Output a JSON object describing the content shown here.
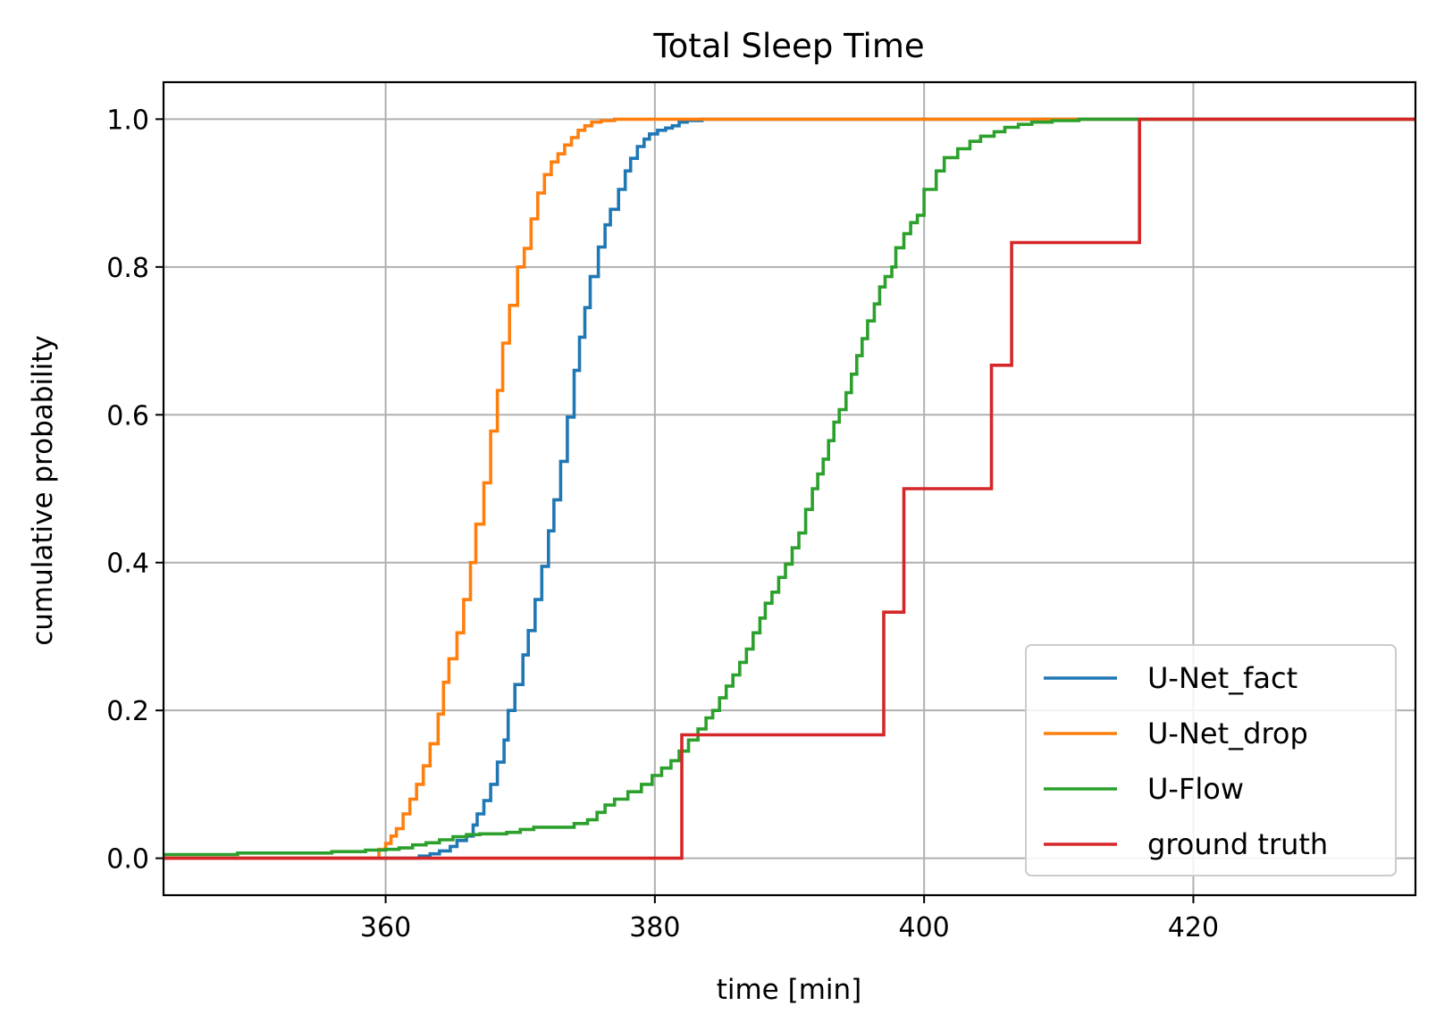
{
  "chart_data": {
    "type": "line",
    "step": true,
    "title": "Total Sleep Time",
    "xlabel": "time [min]",
    "ylabel": "cumulative probability",
    "xlim": [
      343.5,
      436.5
    ],
    "ylim": [
      -0.05,
      1.05
    ],
    "xticks": [
      360,
      380,
      400,
      420
    ],
    "yticks": [
      0.0,
      0.2,
      0.4,
      0.6,
      0.8,
      1.0
    ],
    "xtick_labels": [
      "360",
      "380",
      "400",
      "420"
    ],
    "ytick_labels": [
      "0.0",
      "0.2",
      "0.4",
      "0.6",
      "0.8",
      "1.0"
    ],
    "grid": true,
    "legend_position": "lower-right",
    "series": [
      {
        "name": "U-Net_fact",
        "color": "#1f77b4",
        "points": [
          [
            343.5,
            0.0
          ],
          [
            361.5,
            0.0
          ],
          [
            362.5,
            0.003
          ],
          [
            363.3,
            0.006
          ],
          [
            364.0,
            0.01
          ],
          [
            364.8,
            0.016
          ],
          [
            365.3,
            0.024
          ],
          [
            366.0,
            0.03
          ],
          [
            366.5,
            0.045
          ],
          [
            366.8,
            0.06
          ],
          [
            367.3,
            0.078
          ],
          [
            367.8,
            0.1
          ],
          [
            368.3,
            0.13
          ],
          [
            368.8,
            0.16
          ],
          [
            369.1,
            0.2
          ],
          [
            369.6,
            0.235
          ],
          [
            370.2,
            0.275
          ],
          [
            370.6,
            0.308
          ],
          [
            371.1,
            0.35
          ],
          [
            371.6,
            0.395
          ],
          [
            372.1,
            0.443
          ],
          [
            372.5,
            0.485
          ],
          [
            373.0,
            0.537
          ],
          [
            373.5,
            0.597
          ],
          [
            374.0,
            0.66
          ],
          [
            374.4,
            0.705
          ],
          [
            374.8,
            0.745
          ],
          [
            375.2,
            0.787
          ],
          [
            375.8,
            0.827
          ],
          [
            376.3,
            0.857
          ],
          [
            376.7,
            0.878
          ],
          [
            377.3,
            0.905
          ],
          [
            377.8,
            0.93
          ],
          [
            378.2,
            0.947
          ],
          [
            378.7,
            0.963
          ],
          [
            379.2,
            0.973
          ],
          [
            379.6,
            0.98
          ],
          [
            380.2,
            0.985
          ],
          [
            380.8,
            0.988
          ],
          [
            381.3,
            0.991
          ],
          [
            381.8,
            0.996
          ],
          [
            382.4,
            0.998
          ],
          [
            383.5,
            1.0
          ],
          [
            436.5,
            1.0
          ]
        ]
      },
      {
        "name": "U-Net_drop",
        "color": "#ff7f0e",
        "points": [
          [
            343.5,
            0.0
          ],
          [
            359.3,
            0.0
          ],
          [
            359.5,
            0.012
          ],
          [
            360.0,
            0.02
          ],
          [
            360.4,
            0.03
          ],
          [
            360.8,
            0.04
          ],
          [
            361.3,
            0.06
          ],
          [
            361.8,
            0.08
          ],
          [
            362.3,
            0.1
          ],
          [
            362.8,
            0.125
          ],
          [
            363.3,
            0.155
          ],
          [
            363.9,
            0.195
          ],
          [
            364.3,
            0.238
          ],
          [
            364.7,
            0.27
          ],
          [
            365.3,
            0.305
          ],
          [
            365.8,
            0.35
          ],
          [
            366.3,
            0.4
          ],
          [
            366.7,
            0.452
          ],
          [
            367.3,
            0.508
          ],
          [
            367.8,
            0.578
          ],
          [
            368.3,
            0.633
          ],
          [
            368.7,
            0.697
          ],
          [
            369.2,
            0.748
          ],
          [
            369.8,
            0.8
          ],
          [
            370.3,
            0.825
          ],
          [
            370.8,
            0.865
          ],
          [
            371.3,
            0.9
          ],
          [
            371.8,
            0.925
          ],
          [
            372.3,
            0.942
          ],
          [
            372.8,
            0.953
          ],
          [
            373.3,
            0.965
          ],
          [
            373.8,
            0.975
          ],
          [
            374.3,
            0.985
          ],
          [
            374.8,
            0.991
          ],
          [
            375.3,
            0.996
          ],
          [
            376.0,
            0.998
          ],
          [
            377.0,
            1.0
          ],
          [
            436.5,
            1.0
          ]
        ]
      },
      {
        "name": "U-Flow",
        "color": "#2ca02c",
        "points": [
          [
            343.5,
            0.005
          ],
          [
            349.0,
            0.007
          ],
          [
            356.0,
            0.009
          ],
          [
            358.5,
            0.011
          ],
          [
            360.0,
            0.012
          ],
          [
            361.0,
            0.014
          ],
          [
            362.0,
            0.018
          ],
          [
            363.0,
            0.021
          ],
          [
            364.0,
            0.025
          ],
          [
            365.0,
            0.029
          ],
          [
            366.0,
            0.032
          ],
          [
            367.0,
            0.033
          ],
          [
            369.0,
            0.035
          ],
          [
            370.0,
            0.039
          ],
          [
            371.0,
            0.042
          ],
          [
            374.0,
            0.047
          ],
          [
            375.0,
            0.052
          ],
          [
            375.7,
            0.062
          ],
          [
            376.3,
            0.072
          ],
          [
            377.0,
            0.08
          ],
          [
            378.0,
            0.09
          ],
          [
            379.0,
            0.1
          ],
          [
            379.8,
            0.112
          ],
          [
            380.5,
            0.122
          ],
          [
            381.2,
            0.132
          ],
          [
            381.8,
            0.145
          ],
          [
            382.5,
            0.16
          ],
          [
            383.2,
            0.175
          ],
          [
            383.8,
            0.19
          ],
          [
            384.3,
            0.2
          ],
          [
            384.8,
            0.217
          ],
          [
            385.3,
            0.233
          ],
          [
            385.8,
            0.248
          ],
          [
            386.3,
            0.265
          ],
          [
            386.8,
            0.283
          ],
          [
            387.3,
            0.305
          ],
          [
            387.8,
            0.325
          ],
          [
            388.2,
            0.345
          ],
          [
            388.7,
            0.36
          ],
          [
            389.2,
            0.38
          ],
          [
            389.7,
            0.398
          ],
          [
            390.2,
            0.42
          ],
          [
            390.7,
            0.44
          ],
          [
            391.2,
            0.472
          ],
          [
            391.7,
            0.5
          ],
          [
            392.1,
            0.52
          ],
          [
            392.5,
            0.54
          ],
          [
            392.9,
            0.565
          ],
          [
            393.3,
            0.59
          ],
          [
            393.7,
            0.607
          ],
          [
            394.2,
            0.63
          ],
          [
            394.6,
            0.655
          ],
          [
            395.0,
            0.68
          ],
          [
            395.4,
            0.703
          ],
          [
            395.8,
            0.727
          ],
          [
            396.3,
            0.75
          ],
          [
            396.7,
            0.773
          ],
          [
            397.1,
            0.787
          ],
          [
            397.6,
            0.8
          ],
          [
            397.9,
            0.826
          ],
          [
            398.5,
            0.845
          ],
          [
            399.0,
            0.86
          ],
          [
            399.5,
            0.87
          ],
          [
            400.0,
            0.905
          ],
          [
            400.9,
            0.93
          ],
          [
            401.5,
            0.948
          ],
          [
            402.5,
            0.96
          ],
          [
            403.4,
            0.97
          ],
          [
            404.2,
            0.977
          ],
          [
            405.2,
            0.983
          ],
          [
            406.0,
            0.989
          ],
          [
            407.0,
            0.993
          ],
          [
            408.0,
            0.996
          ],
          [
            409.5,
            0.998
          ],
          [
            411.5,
            1.0
          ],
          [
            436.5,
            1.0
          ]
        ]
      },
      {
        "name": "ground truth",
        "color": "#d62728",
        "points": [
          [
            343.5,
            0.0
          ],
          [
            382.0,
            0.0
          ],
          [
            382.0,
            0.167
          ],
          [
            397.0,
            0.167
          ],
          [
            397.0,
            0.333
          ],
          [
            398.5,
            0.333
          ],
          [
            398.5,
            0.5
          ],
          [
            405.0,
            0.5
          ],
          [
            405.0,
            0.667
          ],
          [
            406.5,
            0.667
          ],
          [
            406.5,
            0.833
          ],
          [
            416.0,
            0.833
          ],
          [
            416.0,
            1.0
          ],
          [
            436.5,
            1.0
          ]
        ]
      }
    ]
  }
}
